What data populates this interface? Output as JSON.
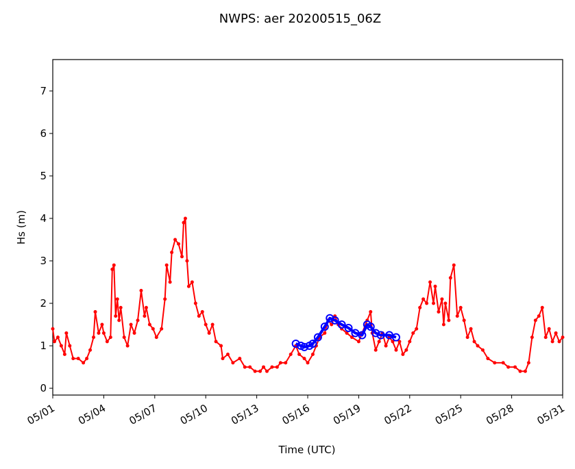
{
  "chart_data": {
    "type": "line",
    "title": "NWPS: aer 20200515_06Z",
    "x_label": "Time (UTC)",
    "y_label": "Hs (m)",
    "xlim": [
      1,
      31
    ],
    "ylim": [
      -0.16,
      7.74
    ],
    "grid": false,
    "xticks": [
      {
        "value": 1,
        "label": "05/01"
      },
      {
        "value": 4,
        "label": "05/04"
      },
      {
        "value": 7,
        "label": "05/07"
      },
      {
        "value": 10,
        "label": "05/10"
      },
      {
        "value": 13,
        "label": "05/13"
      },
      {
        "value": 16,
        "label": "05/16"
      },
      {
        "value": 19,
        "label": "05/19"
      },
      {
        "value": 22,
        "label": "05/22"
      },
      {
        "value": 25,
        "label": "05/25"
      },
      {
        "value": 28,
        "label": "05/28"
      },
      {
        "value": 31,
        "label": "05/31"
      }
    ],
    "yticks": [
      0,
      1,
      2,
      3,
      4,
      5,
      6,
      7
    ],
    "series": [
      {
        "color": "#ff0000",
        "line_width": 2,
        "marker_radius": 2,
        "marker_fill": true,
        "x": [
          1.0,
          1.1,
          1.3,
          1.5,
          1.7,
          1.8,
          2.0,
          2.2,
          2.5,
          2.8,
          3.0,
          3.2,
          3.4,
          3.5,
          3.7,
          3.9,
          4.0,
          4.2,
          4.4,
          4.5,
          4.6,
          4.7,
          4.8,
          4.9,
          5.0,
          5.2,
          5.4,
          5.6,
          5.8,
          6.0,
          6.2,
          6.4,
          6.5,
          6.7,
          6.9,
          7.1,
          7.4,
          7.6,
          7.7,
          7.9,
          8.0,
          8.2,
          8.4,
          8.6,
          8.7,
          8.8,
          8.9,
          9.0,
          9.2,
          9.4,
          9.6,
          9.8,
          10.0,
          10.2,
          10.4,
          10.6,
          10.9,
          11.0,
          11.3,
          11.6,
          12.0,
          12.3,
          12.6,
          12.9,
          13.2,
          13.4,
          13.6,
          13.9,
          14.2,
          14.4,
          14.7,
          15.0,
          15.3,
          15.5,
          15.8,
          16.0,
          16.3,
          16.5,
          16.7,
          17.0,
          17.2,
          17.4,
          17.6,
          17.8,
          18.0,
          18.3,
          18.6,
          19.0,
          19.2,
          19.5,
          19.7,
          19.8,
          20.0,
          20.2,
          20.4,
          20.6,
          20.8,
          21.0,
          21.2,
          21.4,
          21.6,
          21.8,
          22.0,
          22.2,
          22.4,
          22.6,
          22.8,
          23.0,
          23.2,
          23.4,
          23.5,
          23.7,
          23.9,
          24.0,
          24.1,
          24.3,
          24.4,
          24.6,
          24.8,
          25.0,
          25.2,
          25.4,
          25.6,
          25.8,
          26.0,
          26.3,
          26.6,
          27.0,
          27.5,
          27.8,
          28.2,
          28.5,
          28.8,
          29.0,
          29.2,
          29.4,
          29.6,
          29.8,
          30.0,
          30.2,
          30.4,
          30.6,
          30.8,
          31.0
        ],
        "values": [
          1.4,
          1.1,
          1.2,
          1.0,
          0.8,
          1.3,
          1.0,
          0.7,
          0.7,
          0.6,
          0.7,
          0.9,
          1.2,
          1.8,
          1.3,
          1.5,
          1.3,
          1.1,
          1.2,
          2.8,
          2.9,
          1.7,
          2.1,
          1.6,
          1.9,
          1.2,
          1.0,
          1.5,
          1.3,
          1.6,
          2.3,
          1.7,
          1.9,
          1.5,
          1.4,
          1.2,
          1.4,
          2.1,
          2.9,
          2.5,
          3.2,
          3.5,
          3.4,
          3.1,
          3.9,
          4.0,
          3.0,
          2.4,
          2.5,
          2.0,
          1.7,
          1.8,
          1.5,
          1.3,
          1.5,
          1.1,
          1.0,
          0.7,
          0.8,
          0.6,
          0.7,
          0.5,
          0.5,
          0.4,
          0.4,
          0.5,
          0.4,
          0.5,
          0.5,
          0.6,
          0.6,
          0.8,
          1.0,
          0.8,
          0.7,
          0.6,
          0.8,
          1.0,
          1.2,
          1.3,
          1.6,
          1.5,
          1.7,
          1.5,
          1.4,
          1.3,
          1.2,
          1.1,
          1.3,
          1.6,
          1.8,
          1.3,
          0.9,
          1.1,
          1.3,
          1.0,
          1.2,
          1.1,
          0.9,
          1.1,
          0.8,
          0.9,
          1.1,
          1.3,
          1.4,
          1.9,
          2.1,
          2.0,
          2.5,
          2.0,
          2.4,
          1.8,
          2.1,
          1.5,
          2.0,
          1.6,
          2.6,
          2.9,
          1.7,
          1.9,
          1.6,
          1.2,
          1.4,
          1.1,
          1.0,
          0.9,
          0.7,
          0.6,
          0.6,
          0.5,
          0.5,
          0.4,
          0.4,
          0.6,
          1.2,
          1.6,
          1.7,
          1.9,
          1.2,
          1.4,
          1.1,
          1.3,
          1.1,
          1.2
        ]
      },
      {
        "color": "#0000ff",
        "line_width": 4,
        "marker_radius": 5,
        "marker_fill": false,
        "x": [
          15.3,
          15.6,
          15.8,
          16.1,
          16.3,
          16.6,
          17.0,
          17.3,
          17.6,
          18.0,
          18.4,
          18.8,
          19.2,
          19.5,
          19.7,
          20.0,
          20.3,
          20.8,
          21.2
        ],
        "values": [
          1.05,
          1.0,
          0.97,
          1.0,
          1.05,
          1.2,
          1.45,
          1.65,
          1.6,
          1.5,
          1.42,
          1.3,
          1.25,
          1.5,
          1.45,
          1.3,
          1.25,
          1.25,
          1.2
        ]
      }
    ]
  }
}
